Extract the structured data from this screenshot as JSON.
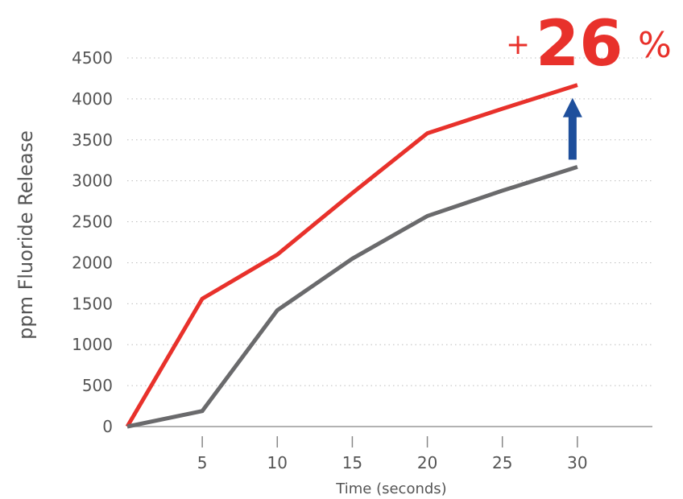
{
  "chart_data": {
    "type": "line",
    "title": "",
    "xlabel": "Time (seconds)",
    "ylabel": "ppm Fluoride Release",
    "xlim": [
      0,
      35
    ],
    "ylim": [
      0,
      4500
    ],
    "x_ticks": [
      5,
      10,
      15,
      20,
      25,
      30
    ],
    "y_ticks": [
      0,
      500,
      1000,
      1500,
      2000,
      2500,
      3000,
      3500,
      4000,
      4500
    ],
    "grid": "horizontal-dotted",
    "series": [
      {
        "color": "#e8312b",
        "x": [
          0,
          5,
          10,
          15,
          20,
          25,
          30
        ],
        "y": [
          0,
          1560,
          2100,
          2850,
          3580,
          3880,
          4170
        ]
      },
      {
        "color": "#6a6a6c",
        "x": [
          0,
          5,
          10,
          15,
          20,
          25,
          30
        ],
        "y": [
          0,
          190,
          1420,
          2050,
          2570,
          2880,
          3170
        ]
      }
    ],
    "annotation": {
      "plus": "+",
      "value": "26",
      "suffix": "%",
      "text_color": "#e8312b",
      "arrow_color": "#1e4f9c",
      "arrow_icon": "up-arrow-icon"
    }
  }
}
